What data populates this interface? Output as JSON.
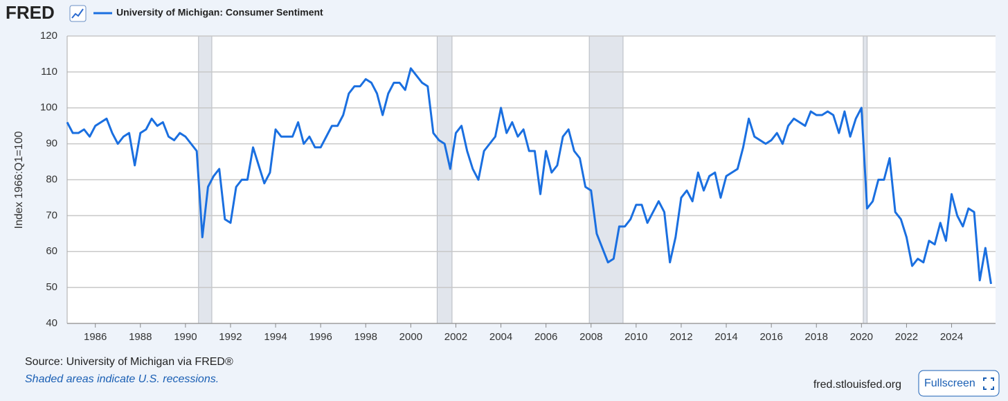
{
  "logo": "FRED",
  "chart_data": {
    "type": "line",
    "ylabel": "Index 1966:Q1=100",
    "xlim": [
      1984.75,
      2025.95
    ],
    "ylim": [
      40,
      120
    ],
    "xticks": [
      1986,
      1988,
      1990,
      1992,
      1994,
      1996,
      1998,
      2000,
      2002,
      2004,
      2006,
      2008,
      2010,
      2012,
      2014,
      2016,
      2018,
      2020,
      2022,
      2024
    ],
    "yticks": [
      40,
      50,
      60,
      70,
      80,
      90,
      100,
      110,
      120
    ],
    "grid": true,
    "recessions": [
      [
        1990.58,
        1991.17
      ],
      [
        2001.17,
        2001.83
      ],
      [
        2007.92,
        2009.42
      ],
      [
        2020.08,
        2020.25
      ]
    ],
    "x": [
      1984.75,
      1985,
      1985.25,
      1985.5,
      1985.75,
      1986,
      1986.25,
      1986.5,
      1986.75,
      1987,
      1987.25,
      1987.5,
      1987.75,
      1988,
      1988.25,
      1988.5,
      1988.75,
      1989,
      1989.25,
      1989.5,
      1989.75,
      1990,
      1990.25,
      1990.5,
      1990.75,
      1991,
      1991.25,
      1991.5,
      1991.75,
      1992,
      1992.25,
      1992.5,
      1992.75,
      1993,
      1993.25,
      1993.5,
      1993.75,
      1994,
      1994.25,
      1994.5,
      1994.75,
      1995,
      1995.25,
      1995.5,
      1995.75,
      1996,
      1996.25,
      1996.5,
      1996.75,
      1997,
      1997.25,
      1997.5,
      1997.75,
      1998,
      1998.25,
      1998.5,
      1998.75,
      1999,
      1999.25,
      1999.5,
      1999.75,
      2000,
      2000.25,
      2000.5,
      2000.75,
      2001,
      2001.25,
      2001.5,
      2001.75,
      2002,
      2002.25,
      2002.5,
      2002.75,
      2003,
      2003.25,
      2003.5,
      2003.75,
      2004,
      2004.25,
      2004.5,
      2004.75,
      2005,
      2005.25,
      2005.5,
      2005.75,
      2006,
      2006.25,
      2006.5,
      2006.75,
      2007,
      2007.25,
      2007.5,
      2007.75,
      2008,
      2008.25,
      2008.5,
      2008.75,
      2009,
      2009.25,
      2009.5,
      2009.75,
      2010,
      2010.25,
      2010.5,
      2010.75,
      2011,
      2011.25,
      2011.5,
      2011.75,
      2012,
      2012.25,
      2012.5,
      2012.75,
      2013,
      2013.25,
      2013.5,
      2013.75,
      2014,
      2014.25,
      2014.5,
      2014.75,
      2015,
      2015.25,
      2015.5,
      2015.75,
      2016,
      2016.25,
      2016.5,
      2016.75,
      2017,
      2017.25,
      2017.5,
      2017.75,
      2018,
      2018.25,
      2018.5,
      2018.75,
      2019,
      2019.25,
      2019.5,
      2019.75,
      2020,
      2020.25,
      2020.5,
      2020.75,
      2021,
      2021.25,
      2021.5,
      2021.75,
      2022,
      2022.25,
      2022.5,
      2022.75,
      2023,
      2023.25,
      2023.5,
      2023.75,
      2024,
      2024.25,
      2024.5,
      2024.75,
      2025,
      2025.25,
      2025.5,
      2025.75
    ],
    "series": [
      {
        "name": "University of Michigan: Consumer Sentiment",
        "color": "#1a6fe0",
        "values": [
          96,
          93,
          93,
          94,
          92,
          95,
          96,
          97,
          93,
          90,
          92,
          93,
          84,
          93,
          94,
          97,
          95,
          96,
          92,
          91,
          93,
          92,
          90,
          88,
          64,
          78,
          81,
          83,
          69,
          68,
          78,
          80,
          80,
          89,
          84,
          79,
          82,
          94,
          92,
          92,
          92,
          96,
          90,
          92,
          89,
          89,
          92,
          95,
          95,
          98,
          104,
          106,
          106,
          108,
          107,
          104,
          98,
          104,
          107,
          107,
          105,
          111,
          109,
          107,
          106,
          93,
          91,
          90,
          83,
          93,
          95,
          88,
          83,
          80,
          88,
          90,
          92,
          100,
          93,
          96,
          92,
          94,
          88,
          88,
          76,
          88,
          82,
          84,
          92,
          94,
          88,
          86,
          78,
          77,
          65,
          61,
          57,
          58,
          67,
          67,
          69,
          73,
          73,
          68,
          71,
          74,
          71,
          57,
          64,
          75,
          77,
          74,
          82,
          77,
          81,
          82,
          75,
          81,
          82,
          83,
          89,
          97,
          92,
          91,
          90,
          91,
          93,
          90,
          95,
          97,
          96,
          95,
          99,
          98,
          98,
          99,
          98,
          93,
          99,
          92,
          97,
          100,
          72,
          74,
          80,
          80,
          86,
          71,
          69,
          64,
          56,
          58,
          57,
          63,
          62,
          68,
          63,
          76,
          70,
          67,
          72,
          71,
          52,
          61,
          51
        ]
      }
    ]
  },
  "source": "Source: University of Michigan via FRED®",
  "note": "Shaded areas indicate U.S. recessions.",
  "site": "fred.stlouisfed.org",
  "button": "Fullscreen"
}
